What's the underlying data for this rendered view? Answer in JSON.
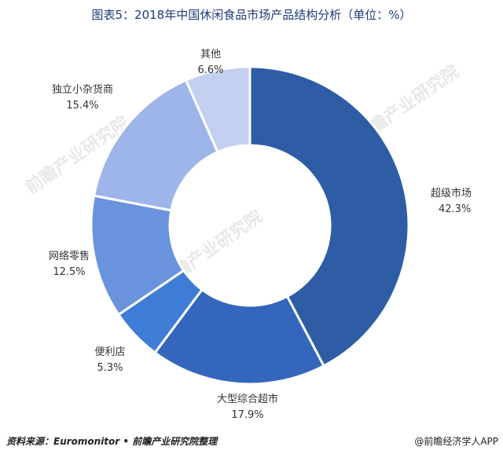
{
  "chart_data": {
    "type": "pie",
    "title": "图表5：2018年中国休闲食品市场产品结构分析（单位：%）",
    "categories": [
      "超级市场",
      "大型综合超市",
      "便利店",
      "网络零售",
      "独立小杂货商",
      "其他"
    ],
    "values": [
      42.3,
      17.9,
      5.3,
      12.5,
      15.4,
      6.6
    ],
    "value_labels": [
      "42.3%",
      "17.9%",
      "5.3%",
      "12.5%",
      "15.4%",
      "6.6%"
    ],
    "colors": [
      "#2e5da6",
      "#3566bd",
      "#3f7cd6",
      "#6a93de",
      "#9db5e8",
      "#c3d0f0"
    ],
    "donut": true,
    "legend": "none"
  },
  "watermark": "前瞻产业研究院",
  "footer": {
    "source": "资料来源：Euromonitor • 前瞻产业研究院整理",
    "brand": "@前瞻经济学人APP"
  }
}
